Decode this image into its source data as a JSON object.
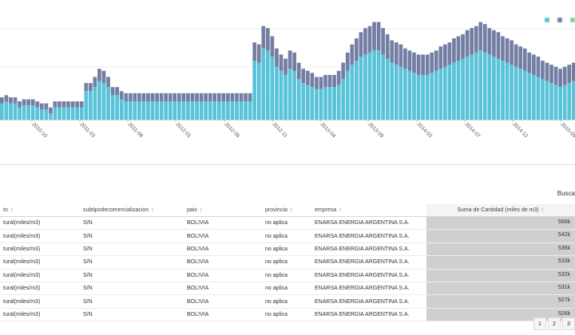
{
  "chart_data": {
    "type": "bar",
    "stacked": true,
    "x_tick_labels": [
      "2010-10",
      "2011-03",
      "2011-08",
      "2012-01",
      "2012-06",
      "2012-11",
      "2013-04",
      "2013-09",
      "2014-02",
      "2014-07",
      "2014-12",
      "2015-05"
    ],
    "series": [
      {
        "color": "#58c3d9",
        "values": [
          8,
          9,
          8,
          8,
          6,
          7,
          7,
          7,
          6,
          5,
          5,
          3,
          6,
          6,
          6,
          6,
          6,
          6,
          6,
          14,
          14,
          16,
          19,
          18,
          16,
          12,
          12,
          10,
          9,
          9,
          9,
          9,
          9,
          9,
          9,
          9,
          9,
          9,
          9,
          9,
          9,
          9,
          9,
          9,
          9,
          9,
          9,
          9,
          9,
          9,
          9,
          9,
          9,
          9,
          9,
          9,
          9,
          29,
          28,
          35,
          34,
          31,
          26,
          24,
          22,
          25,
          24,
          20,
          18,
          17,
          16,
          15,
          15,
          16,
          16,
          16,
          17,
          20,
          24,
          27,
          29,
          31,
          32,
          33,
          34,
          34,
          32,
          30,
          28,
          27,
          26,
          25,
          24,
          23,
          22,
          22,
          22,
          23,
          24,
          25,
          26,
          27,
          28,
          29,
          30,
          31,
          32,
          33,
          34,
          33,
          32,
          31,
          30,
          29,
          28,
          27,
          26,
          25,
          24,
          23,
          22,
          21,
          20,
          19,
          18,
          17,
          16,
          17,
          18,
          19,
          20
        ]
      },
      {
        "color": "#747ea3",
        "values": [
          3,
          3,
          3,
          3,
          3,
          3,
          3,
          3,
          3,
          3,
          3,
          3,
          3,
          3,
          3,
          3,
          3,
          3,
          3,
          4,
          4,
          5,
          6,
          6,
          5,
          4,
          4,
          4,
          4,
          4,
          4,
          4,
          4,
          4,
          4,
          4,
          4,
          4,
          4,
          4,
          4,
          4,
          4,
          4,
          4,
          4,
          4,
          4,
          4,
          4,
          4,
          4,
          4,
          4,
          4,
          4,
          4,
          9,
          9,
          11,
          11,
          10,
          9,
          8,
          8,
          9,
          9,
          8,
          7,
          7,
          7,
          6,
          6,
          6,
          6,
          6,
          7,
          8,
          9,
          10,
          11,
          12,
          13,
          13,
          14,
          14,
          13,
          12,
          11,
          11,
          11,
          10,
          10,
          10,
          10,
          10,
          10,
          10,
          10,
          11,
          11,
          11,
          12,
          12,
          12,
          13,
          13,
          13,
          14,
          14,
          13,
          13,
          13,
          12,
          12,
          12,
          11,
          11,
          11,
          10,
          10,
          10,
          9,
          9,
          9,
          9,
          9,
          9,
          9,
          9,
          9
        ]
      },
      {
        "color": "#7dd3a4",
        "values": []
      }
    ]
  },
  "table": {
    "search_label": "Busca",
    "columns": {
      "producto": "to",
      "subtipo": "subtipodecomercializacion",
      "pais": "pais",
      "provincia": "provincia",
      "empresa": "empresa",
      "cantidad": "Suma de Cantidad (miles de m3)"
    },
    "rows": [
      {
        "producto": "tural(miles/m3)",
        "subtipo": "S/N",
        "pais": "BOLIVIA",
        "provincia": "no aplica",
        "empresa": "ENARSA ENERGIA ARGENTINA S.A.",
        "cantidad": "566k",
        "fraction": 1.0
      },
      {
        "producto": "tural(miles/m3)",
        "subtipo": "S/N",
        "pais": "BOLIVIA",
        "provincia": "no aplica",
        "empresa": "ENARSA ENERGIA ARGENTINA S.A.",
        "cantidad": "542k",
        "fraction": 0.96
      },
      {
        "producto": "tural(miles/m3)",
        "subtipo": "S/N",
        "pais": "BOLIVIA",
        "provincia": "no aplica",
        "empresa": "ENARSA ENERGIA ARGENTINA S.A.",
        "cantidad": "536k",
        "fraction": 0.95
      },
      {
        "producto": "tural(miles/m3)",
        "subtipo": "S/N",
        "pais": "BOLIVIA",
        "provincia": "no aplica",
        "empresa": "ENARSA ENERGIA ARGENTINA S.A.",
        "cantidad": "533k",
        "fraction": 0.94
      },
      {
        "producto": "tural(miles/m3)",
        "subtipo": "S/N",
        "pais": "BOLIVIA",
        "provincia": "no aplica",
        "empresa": "ENARSA ENERGIA ARGENTINA S.A.",
        "cantidad": "532k",
        "fraction": 0.94
      },
      {
        "producto": "tural(miles/m3)",
        "subtipo": "S/N",
        "pais": "BOLIVIA",
        "provincia": "no aplica",
        "empresa": "ENARSA ENERGIA ARGENTINA S.A.",
        "cantidad": "531k",
        "fraction": 0.94
      },
      {
        "producto": "tural(miles/m3)",
        "subtipo": "S/N",
        "pais": "BOLIVIA",
        "provincia": "no aplica",
        "empresa": "ENARSA ENERGIA ARGENTINA S.A.",
        "cantidad": "527k",
        "fraction": 0.93
      },
      {
        "producto": "tural(miles/m3)",
        "subtipo": "S/N",
        "pais": "BOLIVIA",
        "provincia": "no aplica",
        "empresa": "ENARSA ENERGIA ARGENTINA S.A.",
        "cantidad": "526k",
        "fraction": 0.93
      }
    ]
  },
  "pagination": {
    "pages": [
      "1",
      "2",
      "3"
    ]
  }
}
